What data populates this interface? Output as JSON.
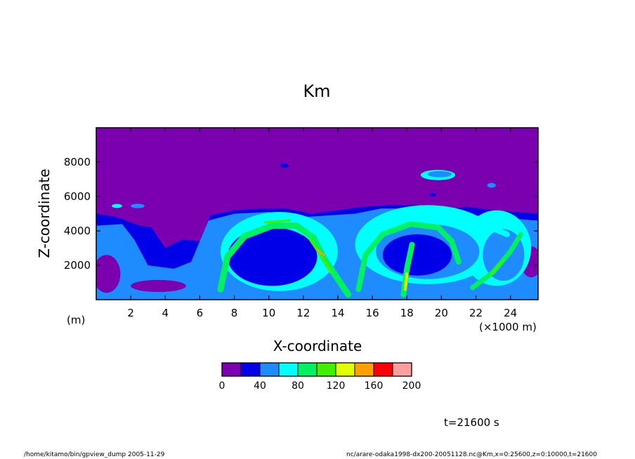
{
  "chart_data": {
    "type": "heatmap",
    "title": "Km",
    "xlabel": "X-coordinate",
    "ylabel": "Z-coordinate",
    "x_unit_label": "(×1000 m)",
    "y_unit_label": "(m)",
    "xlim": [
      0,
      25.6
    ],
    "ylim": [
      0,
      10000
    ],
    "x_ticks": [
      "2",
      "4",
      "6",
      "8",
      "10",
      "12",
      "14",
      "16",
      "18",
      "20",
      "22",
      "24"
    ],
    "y_ticks": [
      "2000",
      "4000",
      "6000",
      "8000"
    ],
    "colorbar": {
      "levels": [
        0,
        20,
        40,
        60,
        80,
        100,
        120,
        140,
        160,
        180,
        200
      ],
      "tick_labels": [
        "0",
        "40",
        "80",
        "120",
        "160",
        "200"
      ],
      "colors": [
        "#7a00b0",
        "#0000e8",
        "#1e8cff",
        "#00ffff",
        "#00f064",
        "#40f000",
        "#e0ff00",
        "#ffa000",
        "#ff0000",
        "#ff9e9e"
      ]
    },
    "time_label": "t=21600 s"
  },
  "footer": {
    "left": "/home/kitamo/bin/gpview_dump  2005-11-29",
    "right": "nc/arare-odaka1998-dx200-20051128.nc@Km,x=0:25600,z=0:10000,t=21600"
  }
}
